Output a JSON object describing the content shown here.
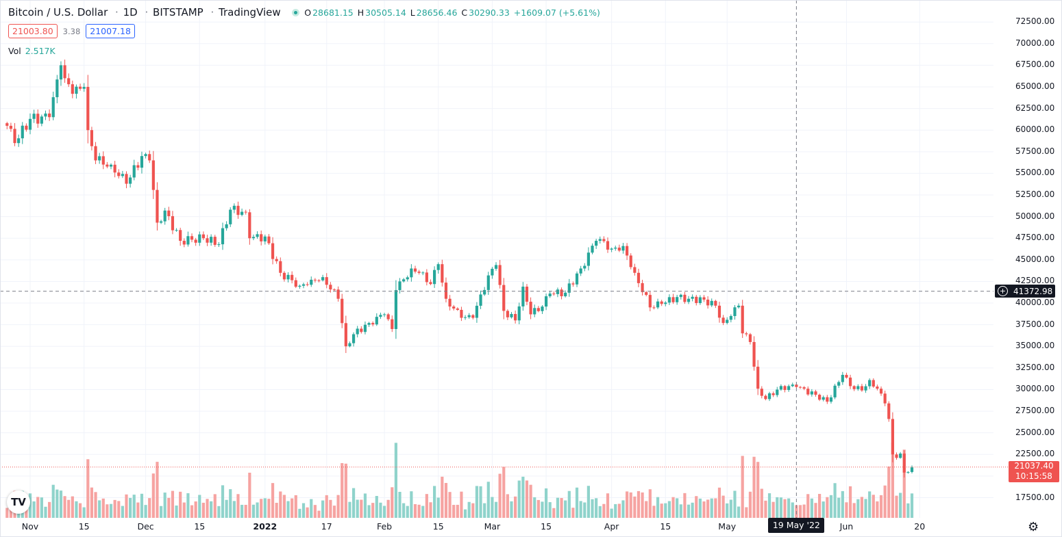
{
  "header": {
    "symbol": "Bitcoin / U.S. Dollar",
    "interval": "1D",
    "exchange": "BITSTAMP",
    "source": "TradingView",
    "separator": "·",
    "ohlc": {
      "open_label": "O",
      "open": "28681.15",
      "high_label": "H",
      "high": "30505.14",
      "low_label": "L",
      "low": "28656.46",
      "close_label": "C",
      "close": "30290.33",
      "change": "+1609.07 (+5.61%)"
    },
    "bid": "21003.80",
    "spread": "3.38",
    "ask": "21007.18",
    "volume_label": "Vol",
    "volume": "2.517K"
  },
  "price_scale": {
    "crosshair_price": "41372.98",
    "last_price": "21037.40",
    "countdown": "10:15:58"
  },
  "time_scale": {
    "crosshair_date": "19 May '22"
  },
  "branding": {
    "logo_text": "TV"
  },
  "icons": {
    "settings": "gear-icon",
    "live": "live-status-dot",
    "crosshair_plus": "plus-circle-icon"
  },
  "colors": {
    "up": "#26a69a",
    "down": "#ef5350",
    "volume_up": "#8fd3cb",
    "volume_down": "#f6a3a1",
    "crosshair_label": "#131722",
    "grid": "#f0f3fa"
  },
  "chart_data": {
    "type": "candlestick",
    "interval": "1D",
    "ylim": [
      15000,
      73000
    ],
    "y_ticks": [
      17500,
      20000,
      22500,
      25000,
      27500,
      30000,
      32500,
      35000,
      37500,
      40000,
      42500,
      45000,
      47500,
      50000,
      52500,
      55000,
      57500,
      60000,
      62500,
      65000,
      67500,
      70000,
      72500
    ],
    "y_tick_labels": [
      "17500.00",
      "",
      "22500.00",
      "25000.00",
      "27500.00",
      "30000.00",
      "32500.00",
      "35000.00",
      "37500.00",
      "40000.00",
      "42500.00",
      "45000.00",
      "47500.00",
      "50000.00",
      "52500.00",
      "55000.00",
      "57500.00",
      "60000.00",
      "62500.00",
      "65000.00",
      "67500.00",
      "70000.00",
      "72500.00"
    ],
    "x_labels": [
      {
        "text": "Nov",
        "date": "2021-11-01"
      },
      {
        "text": "15",
        "date": "2021-11-15"
      },
      {
        "text": "Dec",
        "date": "2021-12-01"
      },
      {
        "text": "15",
        "date": "2021-12-15"
      },
      {
        "text": "2022",
        "date": "2022-01-01"
      },
      {
        "text": "17",
        "date": "2022-01-17"
      },
      {
        "text": "Feb",
        "date": "2022-02-01"
      },
      {
        "text": "15",
        "date": "2022-02-15"
      },
      {
        "text": "Mar",
        "date": "2022-03-01"
      },
      {
        "text": "15",
        "date": "2022-03-15"
      },
      {
        "text": "Apr",
        "date": "2022-04-01"
      },
      {
        "text": "15",
        "date": "2022-04-15"
      },
      {
        "text": "May",
        "date": "2022-05-01"
      },
      {
        "text": "Jun",
        "date": "2022-06-01"
      },
      {
        "text": "20",
        "date": "2022-06-20"
      }
    ],
    "keypoints": [
      {
        "date": "2021-10-26",
        "close": 60500
      },
      {
        "date": "2021-10-28",
        "close": 58500
      },
      {
        "date": "2021-11-01",
        "close": 61300
      },
      {
        "date": "2021-11-06",
        "close": 61500
      },
      {
        "date": "2021-11-09",
        "close": 67500
      },
      {
        "date": "2021-11-10",
        "close": 66000
      },
      {
        "date": "2021-11-12",
        "close": 64200
      },
      {
        "date": "2021-11-15",
        "close": 65000
      },
      {
        "date": "2021-11-16",
        "close": 60000
      },
      {
        "date": "2021-11-18",
        "close": 56500
      },
      {
        "date": "2021-11-22",
        "close": 56000
      },
      {
        "date": "2021-11-26",
        "close": 53800
      },
      {
        "date": "2021-11-30",
        "close": 57000
      },
      {
        "date": "2021-12-02",
        "close": 56500
      },
      {
        "date": "2021-12-04",
        "close": 49300
      },
      {
        "date": "2021-12-06",
        "close": 50700
      },
      {
        "date": "2021-12-10",
        "close": 47200
      },
      {
        "date": "2021-12-16",
        "close": 47500
      },
      {
        "date": "2021-12-20",
        "close": 46800
      },
      {
        "date": "2021-12-23",
        "close": 50800
      },
      {
        "date": "2021-12-27",
        "close": 50500
      },
      {
        "date": "2021-12-28",
        "close": 47500
      },
      {
        "date": "2022-01-01",
        "close": 47700
      },
      {
        "date": "2022-01-05",
        "close": 43500
      },
      {
        "date": "2022-01-10",
        "close": 42000
      },
      {
        "date": "2022-01-13",
        "close": 42700
      },
      {
        "date": "2022-01-16",
        "close": 43000
      },
      {
        "date": "2022-01-20",
        "close": 40500
      },
      {
        "date": "2022-01-22",
        "close": 35000
      },
      {
        "date": "2022-01-24",
        "close": 36400
      },
      {
        "date": "2022-01-28",
        "close": 37700
      },
      {
        "date": "2022-02-01",
        "close": 38700
      },
      {
        "date": "2022-02-03",
        "close": 37000
      },
      {
        "date": "2022-02-04",
        "close": 41500
      },
      {
        "date": "2022-02-08",
        "close": 44000
      },
      {
        "date": "2022-02-10",
        "close": 43500
      },
      {
        "date": "2022-02-13",
        "close": 42200
      },
      {
        "date": "2022-02-15",
        "close": 44500
      },
      {
        "date": "2022-02-17",
        "close": 40500
      },
      {
        "date": "2022-02-21",
        "close": 38300
      },
      {
        "date": "2022-02-24",
        "close": 38300
      },
      {
        "date": "2022-02-28",
        "close": 43200
      },
      {
        "date": "2022-03-02",
        "close": 44400
      },
      {
        "date": "2022-03-04",
        "close": 39100
      },
      {
        "date": "2022-03-07",
        "close": 38000
      },
      {
        "date": "2022-03-09",
        "close": 41900
      },
      {
        "date": "2022-03-11",
        "close": 38700
      },
      {
        "date": "2022-03-14",
        "close": 39600
      },
      {
        "date": "2022-03-16",
        "close": 41100
      },
      {
        "date": "2022-03-20",
        "close": 41200
      },
      {
        "date": "2022-03-24",
        "close": 44000
      },
      {
        "date": "2022-03-28",
        "close": 47200
      },
      {
        "date": "2022-03-29",
        "close": 47400
      },
      {
        "date": "2022-04-01",
        "close": 46300
      },
      {
        "date": "2022-04-04",
        "close": 46600
      },
      {
        "date": "2022-04-05",
        "close": 45500
      },
      {
        "date": "2022-04-07",
        "close": 43500
      },
      {
        "date": "2022-04-11",
        "close": 39500
      },
      {
        "date": "2022-04-14",
        "close": 39900
      },
      {
        "date": "2022-04-18",
        "close": 40700
      },
      {
        "date": "2022-04-21",
        "close": 40500
      },
      {
        "date": "2022-04-25",
        "close": 40400
      },
      {
        "date": "2022-04-28",
        "close": 39700
      },
      {
        "date": "2022-04-30",
        "close": 37700
      },
      {
        "date": "2022-05-02",
        "close": 38500
      },
      {
        "date": "2022-05-04",
        "close": 39700
      },
      {
        "date": "2022-05-05",
        "close": 36500
      },
      {
        "date": "2022-05-07",
        "close": 35500
      },
      {
        "date": "2022-05-09",
        "close": 30100
      },
      {
        "date": "2022-05-11",
        "close": 28900
      },
      {
        "date": "2022-05-14",
        "close": 30000
      },
      {
        "date": "2022-05-17",
        "close": 30400
      },
      {
        "date": "2022-05-19",
        "close": 30300
      },
      {
        "date": "2022-05-24",
        "close": 29400
      },
      {
        "date": "2022-05-27",
        "close": 28600
      },
      {
        "date": "2022-05-31",
        "close": 31700
      },
      {
        "date": "2022-06-02",
        "close": 30400
      },
      {
        "date": "2022-06-05",
        "close": 29900
      },
      {
        "date": "2022-06-07",
        "close": 31100
      },
      {
        "date": "2022-06-09",
        "close": 30100
      },
      {
        "date": "2022-06-11",
        "close": 28400
      },
      {
        "date": "2022-06-12",
        "close": 26600
      },
      {
        "date": "2022-06-13",
        "close": 22500
      },
      {
        "date": "2022-06-14",
        "close": 22100
      },
      {
        "date": "2022-06-15",
        "close": 22600
      },
      {
        "date": "2022-06-16",
        "close": 20400
      },
      {
        "date": "2022-06-18",
        "close": 21000
      }
    ],
    "annotations": {
      "crosshair_price": 41372.98,
      "last_price": 21037.4,
      "crosshair_date": "2022-05-19"
    }
  }
}
